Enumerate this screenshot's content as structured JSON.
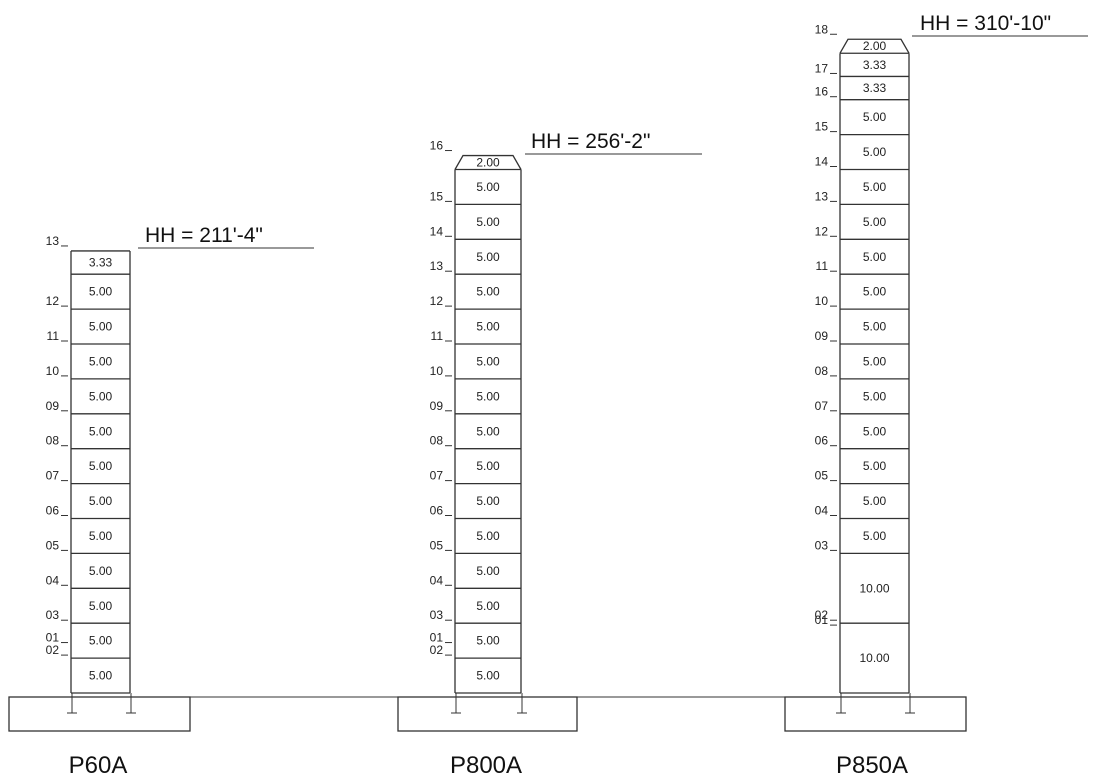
{
  "towers": [
    {
      "name": "P60A",
      "hub_height": "HH = 211'-4\"",
      "levels": [
        "01",
        "02",
        "03",
        "04",
        "05",
        "06",
        "07",
        "08",
        "09",
        "10",
        "11",
        "12",
        "13"
      ],
      "sections": [
        "5.00",
        "5.00",
        "5.00",
        "5.00",
        "5.00",
        "5.00",
        "5.00",
        "5.00",
        "5.00",
        "5.00",
        "5.00",
        "5.00",
        "3.33"
      ],
      "top_cap": false
    },
    {
      "name": "P800A",
      "hub_height": "HH = 256'-2\"",
      "levels": [
        "01",
        "02",
        "03",
        "04",
        "05",
        "06",
        "07",
        "08",
        "09",
        "10",
        "11",
        "12",
        "13",
        "14",
        "15",
        "16"
      ],
      "sections": [
        "5.00",
        "5.00",
        "5.00",
        "5.00",
        "5.00",
        "5.00",
        "5.00",
        "5.00",
        "5.00",
        "5.00",
        "5.00",
        "5.00",
        "5.00",
        "5.00",
        "5.00",
        "2.00"
      ],
      "top_cap": true
    },
    {
      "name": "P850A",
      "hub_height": "HH = 310'-10\"",
      "levels": [
        "01",
        "02",
        "03",
        "04",
        "05",
        "06",
        "07",
        "08",
        "09",
        "10",
        "11",
        "12",
        "13",
        "14",
        "15",
        "16",
        "17",
        "18"
      ],
      "sections": [
        "10.00",
        "10.00",
        "5.00",
        "5.00",
        "5.00",
        "5.00",
        "5.00",
        "5.00",
        "5.00",
        "5.00",
        "5.00",
        "5.00",
        "5.00",
        "5.00",
        "5.00",
        "3.33",
        "3.33",
        "2.00"
      ],
      "top_cap": true
    }
  ]
}
